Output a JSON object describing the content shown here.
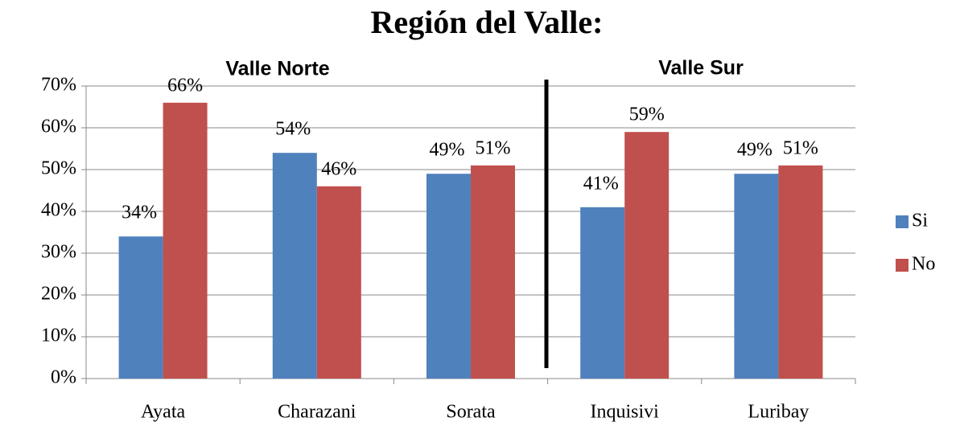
{
  "chart_data": {
    "type": "bar",
    "title": "Región del Valle:",
    "annotations": [
      "Valle Norte",
      "Valle Sur"
    ],
    "categories": [
      "Ayata",
      "Charazani",
      "Sorata",
      "Inquisivi",
      "Luribay"
    ],
    "series": [
      {
        "name": "Si",
        "color": "#4f81bd",
        "values": [
          34,
          54,
          49,
          41,
          49
        ],
        "value_labels": [
          "34%",
          "54%",
          "49%",
          "41%",
          "49%"
        ]
      },
      {
        "name": "No",
        "color": "#c0504d",
        "values": [
          66,
          46,
          51,
          59,
          51
        ],
        "value_labels": [
          "66%",
          "46%",
          "51%",
          "59%",
          "51%"
        ]
      }
    ],
    "ylim": [
      0,
      70
    ],
    "yticks": [
      {
        "value": 0,
        "label": "0%"
      },
      {
        "value": 10,
        "label": "10%"
      },
      {
        "value": 20,
        "label": "20%"
      },
      {
        "value": 30,
        "label": "30%"
      },
      {
        "value": 40,
        "label": "40%"
      },
      {
        "value": 50,
        "label": "50%"
      },
      {
        "value": 60,
        "label": "60%"
      },
      {
        "value": 70,
        "label": "70%"
      }
    ],
    "grid": true,
    "legend": "right"
  }
}
